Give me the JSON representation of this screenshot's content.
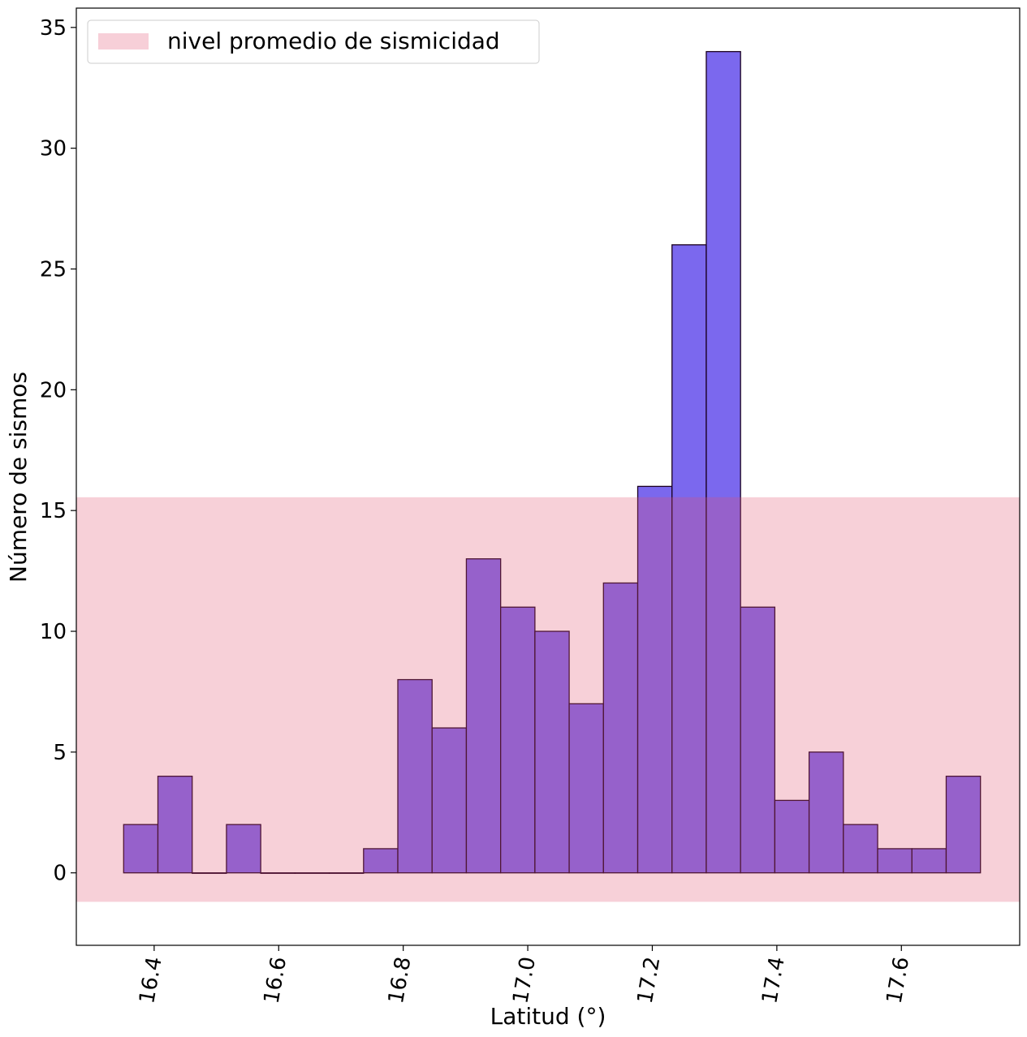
{
  "chart_data": {
    "type": "bar",
    "title": "",
    "xlabel": "Latitud (°)",
    "ylabel": "Número de sismos",
    "xlim": [
      16.275,
      17.79
    ],
    "ylim": [
      -3.0,
      35.8
    ],
    "xticks": [
      "16.4",
      "16.6",
      "16.8",
      "17.0",
      "17.2",
      "17.4",
      "17.6"
    ],
    "yticks": [
      "0",
      "5",
      "10",
      "15",
      "20",
      "25",
      "30",
      "35"
    ],
    "bin_start": 16.351,
    "bin_width": 0.05504,
    "values": [
      2,
      4,
      0,
      2,
      0,
      0,
      0,
      1,
      8,
      6,
      13,
      11,
      10,
      7,
      12,
      16,
      26,
      34,
      11,
      3,
      5,
      2,
      1,
      1,
      4
    ],
    "band": {
      "y_from": -1.2,
      "y_to": 15.55,
      "label": "nivel promedio de sismicidad"
    },
    "legend_position": "upper-left",
    "grid": false,
    "colors": {
      "bar_fill": "#7b68ee",
      "bar_edge": "#1a0020",
      "band_fill": "#f7cfd8"
    }
  }
}
